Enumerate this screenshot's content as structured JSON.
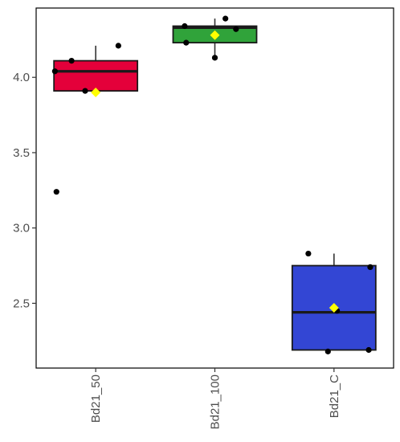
{
  "chart_data": {
    "type": "boxplot",
    "title": "",
    "xlabel": "",
    "ylabel": "",
    "categories": [
      "Bd21_50",
      "Bd21_100",
      "Bd21_C"
    ],
    "ylim": [
      2.07,
      4.46
    ],
    "y_ticks": [
      2.5,
      3.0,
      3.5,
      4.0
    ],
    "y_tick_labels": [
      "2.5",
      "3.0",
      "3.5",
      "4.0"
    ],
    "grid": false,
    "legend": "none",
    "colors": {
      "Bd21_50": "#e4003a",
      "Bd21_100": "#30a33a",
      "Bd21_C": "#3346d4",
      "mean_marker": "#ffff00",
      "points": "#000000"
    },
    "boxes": [
      {
        "category": "Bd21_50",
        "whisker_low": 3.91,
        "q1": 3.91,
        "median": 4.04,
        "q3": 4.11,
        "whisker_high": 4.21,
        "mean": 3.9,
        "points": [
          {
            "offset": -0.27,
            "value": 4.04
          },
          {
            "offset": -0.16,
            "value": 4.11
          },
          {
            "offset": -0.07,
            "value": 3.91
          },
          {
            "offset": 0.15,
            "value": 4.21
          },
          {
            "offset": -0.26,
            "value": 3.24
          }
        ]
      },
      {
        "category": "Bd21_100",
        "whisker_low": 4.13,
        "q1": 4.23,
        "median": 4.33,
        "q3": 4.34,
        "whisker_high": 4.39,
        "mean": 4.28,
        "points": [
          {
            "offset": -0.2,
            "value": 4.34
          },
          {
            "offset": -0.19,
            "value": 4.23
          },
          {
            "offset": 0.0,
            "value": 4.13
          },
          {
            "offset": 0.07,
            "value": 4.39
          },
          {
            "offset": 0.14,
            "value": 4.32
          }
        ]
      },
      {
        "category": "Bd21_C",
        "whisker_low": 2.19,
        "q1": 2.19,
        "median": 2.44,
        "q3": 2.75,
        "whisker_high": 2.83,
        "mean": 2.47,
        "points": [
          {
            "offset": -0.17,
            "value": 2.83
          },
          {
            "offset": -0.04,
            "value": 2.18
          },
          {
            "offset": 0.02,
            "value": 2.45
          },
          {
            "offset": 0.24,
            "value": 2.74
          },
          {
            "offset": 0.23,
            "value": 2.19
          }
        ]
      }
    ]
  }
}
